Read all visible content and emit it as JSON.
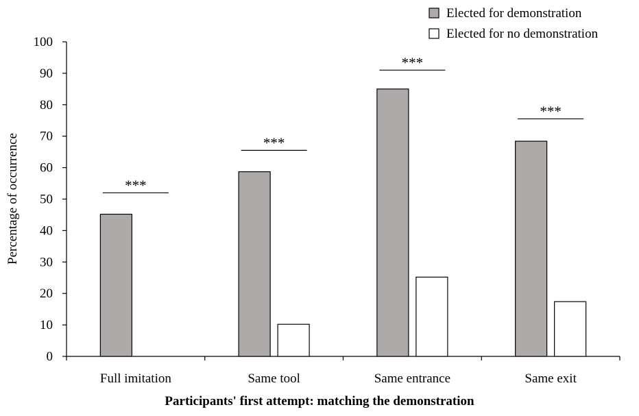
{
  "chart_data": {
    "type": "bar",
    "title": "",
    "xlabel": "Participants' first attempt: matching the demonstration",
    "ylabel": "Percentage of occurrence",
    "ylim": [
      0,
      100
    ],
    "yticks": [
      0,
      10,
      20,
      30,
      40,
      50,
      60,
      70,
      80,
      90,
      100
    ],
    "categories": [
      "Full imitation",
      "Same tool",
      "Same entrance",
      "Same exit"
    ],
    "series": [
      {
        "name": "Elected for demonstration",
        "color": "#aeaaaa",
        "values": [
          45.2,
          58.7,
          85.0,
          68.4
        ]
      },
      {
        "name": "Elected for no demonstration",
        "color": "#ffffff",
        "values": [
          0,
          10.2,
          25.2,
          17.4
        ]
      }
    ],
    "annotations": [
      "***",
      "***",
      "***",
      "***"
    ],
    "annotation_levels": [
      52,
      65.5,
      91,
      75.5
    ],
    "legend_position": "top-right",
    "grid": false
  }
}
